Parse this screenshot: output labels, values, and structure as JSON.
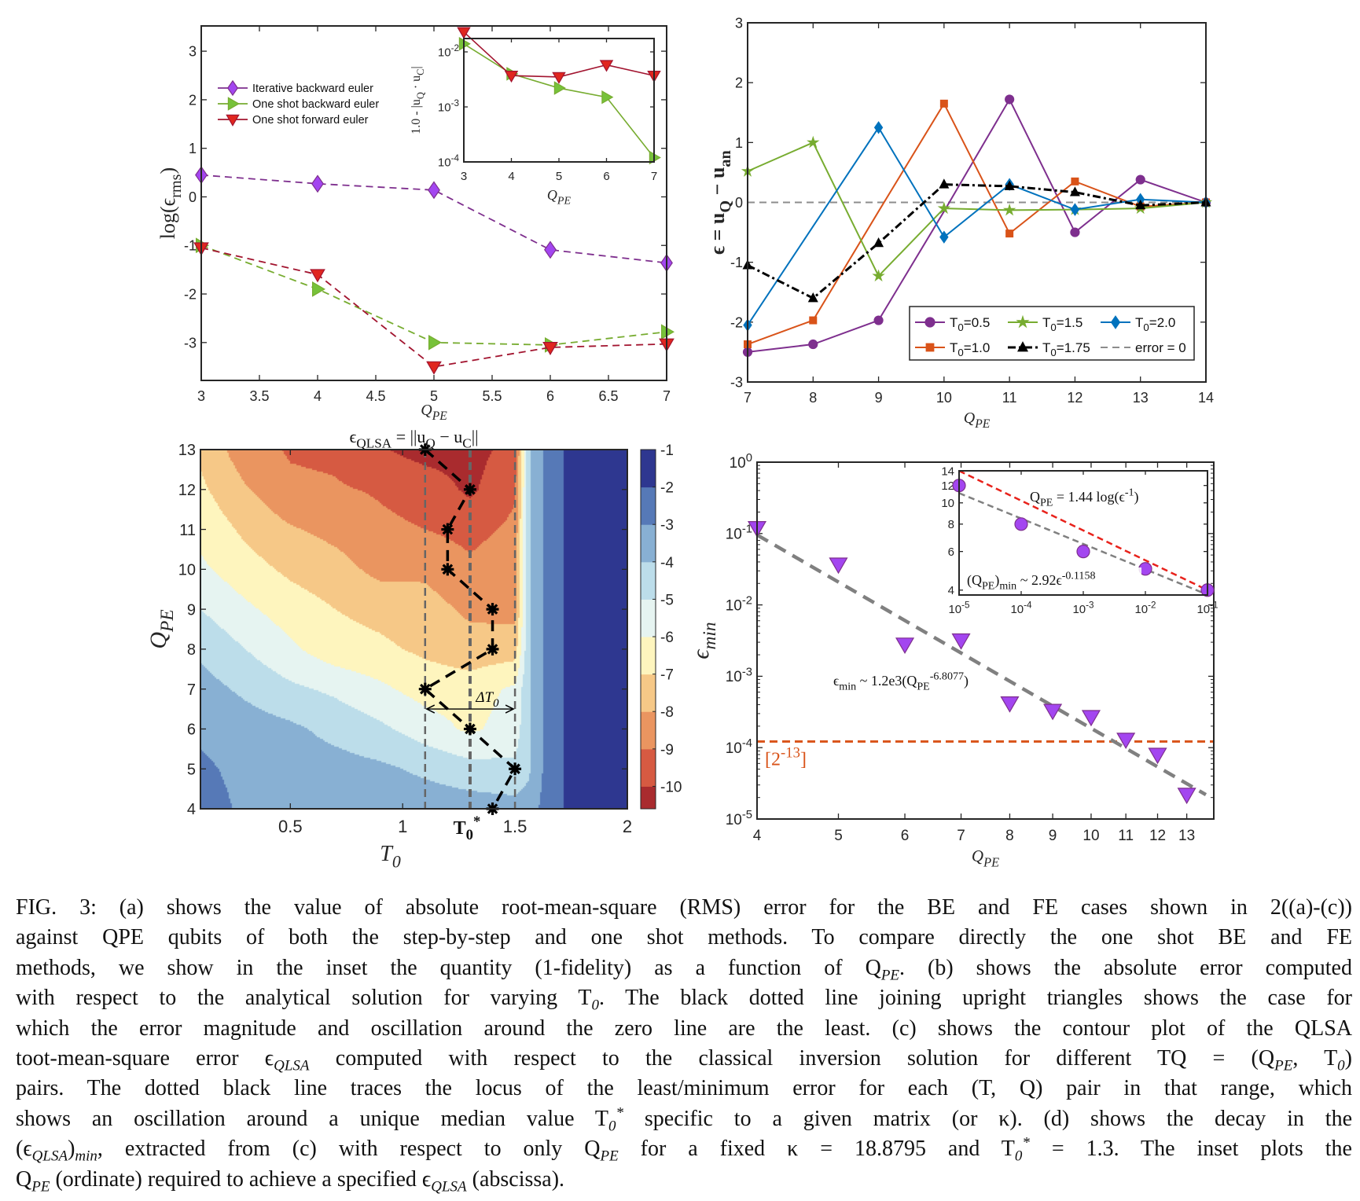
{
  "figure": {
    "caption_lines": [
      "FIG. 3:  (a) shows the value of absolute root-mean-square (RMS) error for the BE and FE cases shown in 2((a)-(c))",
      "against QPE qubits of both the step-by-step and one shot methods. To compare directly the one shot BE and FE",
      "methods, we show in the inset the quantity (1-fidelity) as a function of Q_{PE}. (b) shows the absolute error computed",
      "with respect to the analytical solution for varying T_{0}. The black dotted line joining upright triangles shows the case for",
      "which the error magnitude and oscillation around the zero line are the least. (c) shows the contour plot of the QLSA",
      "toot-mean-square error ϵ_{QLSA} computed with respect to the classical inversion solution for different TQ = (Q_{PE}, T_{0})",
      "pairs. The dotted black line traces the locus of the least/minimum error for each (T, Q) pair in that range, which",
      "shows an oscillation around a unique median value T_{0}^{*} specific to a given matrix (or κ). (d) shows the decay in the",
      "(ϵ_{QLSA})_{min}, extracted from (c) with respect to only Q_{PE} for a fixed κ = 18.8795 and T_{0}^{*} = 1.3. The inset plots the",
      "Q_{PE} (ordinate) required to achieve a specified ϵ_{QLSA} (abscissa)."
    ]
  },
  "chart_data": [
    {
      "id": "a",
      "type": "line",
      "xlabel": "Q_{PE}",
      "ylabel": "log(ϵ_{rms})",
      "xlim": [
        3,
        7
      ],
      "ylim": [
        -3.78,
        3.52
      ],
      "xscale": "linear",
      "yscale": "linear",
      "xticks": [
        3,
        3.5,
        4,
        4.5,
        5,
        5.5,
        6,
        6.5,
        7
      ],
      "xtick_labels": [
        "3",
        "3.5",
        "4",
        "4.5",
        "5",
        "5.5",
        "6",
        "6.5",
        "7"
      ],
      "yticks": [
        -3,
        -2,
        -1,
        0,
        1,
        2,
        3
      ],
      "ytick_labels": [
        "-3",
        "-2",
        "-1",
        "0",
        "1",
        "2",
        "3"
      ],
      "grid": false,
      "legend": "top-left",
      "x": [
        3,
        4,
        5,
        6,
        7
      ],
      "series": [
        {
          "name": "Iterative backward euler",
          "values": [
            0.45,
            0.27,
            0.14,
            -1.09,
            -1.36
          ],
          "color": "#7E2F8E",
          "marker_fill": "#A346F0",
          "marker": "diamond",
          "line": "dashed"
        },
        {
          "name": "One shot backward euler",
          "values": [
            -1.0,
            -1.9,
            -3.0,
            -3.05,
            -2.78
          ],
          "color": "#77AC30",
          "marker_fill": "#77C23A",
          "marker": "triangle-right",
          "line": "dashed"
        },
        {
          "name": "One shot forward euler",
          "values": [
            -1.05,
            -1.6,
            -3.5,
            -3.1,
            -3.03
          ],
          "color": "#A2142F",
          "marker_fill": "#E0261F",
          "marker": "triangle-down",
          "line": "dashed"
        }
      ]
    },
    {
      "id": "a-inset",
      "type": "line",
      "xlabel": "Q_{PE}",
      "ylabel": "1.0 - |u_{Q} · u_{C}|",
      "xlim": [
        3,
        7
      ],
      "ylim": [
        0.0001,
        0.0175
      ],
      "xscale": "linear",
      "yscale": "log",
      "xticks": [
        3,
        4,
        5,
        6,
        7
      ],
      "xtick_labels": [
        "3",
        "4",
        "5",
        "6",
        "7"
      ],
      "yticks": [
        0.0001,
        0.001,
        0.01
      ],
      "ytick_labels": [
        "10^{-4}",
        "10^{-3}",
        "10^{-2}"
      ],
      "x": [
        3,
        4,
        5,
        6,
        7
      ],
      "series": [
        {
          "values": [
            0.014,
            0.004,
            0.0022,
            0.0015,
            0.00012
          ],
          "color": "#77AC30",
          "marker_fill": "#77C23A",
          "marker": "triangle-right",
          "line": "solid"
        },
        {
          "values": [
            0.023,
            0.0037,
            0.0035,
            0.0058,
            0.0037
          ],
          "color": "#A2142F",
          "marker_fill": "#E0261F",
          "marker": "triangle-down",
          "line": "solid"
        }
      ]
    },
    {
      "id": "b",
      "type": "line",
      "xlabel": "Q_{PE}",
      "ylabel": "ϵ = u_{Q} − u_{an}",
      "xlim": [
        7,
        14
      ],
      "ylim": [
        -3,
        3
      ],
      "xscale": "linear",
      "yscale": "linear",
      "xticks": [
        7,
        8,
        9,
        10,
        11,
        12,
        13,
        14
      ],
      "xtick_labels": [
        "7",
        "8",
        "9",
        "10",
        "11",
        "12",
        "13",
        "14"
      ],
      "yticks": [
        -3,
        -2,
        -1,
        0,
        1,
        2,
        3
      ],
      "ytick_labels": [
        "-3",
        "-2",
        "-1",
        "0",
        "1",
        "2",
        "3"
      ],
      "legend": "bottom-right",
      "x": [
        7,
        8,
        9,
        10,
        11,
        12,
        13,
        14
      ],
      "series": [
        {
          "name": "T_{0}=0.5",
          "values": [
            -2.5,
            -2.37,
            -1.97,
            -0.15,
            1.72,
            -0.5,
            0.38,
            0
          ],
          "color": "#7E2F8E",
          "marker": "circle",
          "line": "solid",
          "marker_at": [
            1,
            1,
            1,
            0,
            1,
            1,
            1,
            1
          ]
        },
        {
          "name": "T_{0}=1.5",
          "values": [
            0.52,
            1.0,
            -1.23,
            -0.1,
            -0.13,
            -0.12,
            -0.1,
            0
          ],
          "color": "#77AC30",
          "marker": "star",
          "line": "solid"
        },
        {
          "name": "T_{0}=2.0",
          "values": [
            -2.05,
            -0.4,
            1.25,
            -0.58,
            0.3,
            -0.12,
            0.05,
            0
          ],
          "color": "#0072BD",
          "marker": "diamond",
          "line": "solid",
          "marker_at": [
            1,
            0,
            1,
            1,
            1,
            1,
            1,
            1
          ]
        },
        {
          "name": "T_{0}=1.0",
          "values": [
            -2.37,
            -1.97,
            -0.15,
            1.65,
            -0.52,
            0.35,
            -0.07,
            0
          ],
          "color": "#D95319",
          "marker": "square",
          "line": "solid",
          "marker_at": [
            1,
            1,
            0,
            1,
            1,
            1,
            1,
            1
          ]
        },
        {
          "name": "T_{0}=1.75",
          "values": [
            -1.05,
            -1.6,
            -0.68,
            0.3,
            0.27,
            0.17,
            -0.05,
            0
          ],
          "color": "#000000",
          "marker": "triangle-up",
          "line": "dashdot"
        },
        {
          "name": "error = 0",
          "values": [
            0,
            0,
            0,
            0,
            0,
            0,
            0,
            0
          ],
          "color": "#8C8C8C",
          "marker": "none",
          "line": "dashed"
        }
      ]
    },
    {
      "id": "c",
      "type": "heatmap",
      "title": "ϵ_{QLSA} = ||u_{Q} − u_{C}||",
      "xlabel": "T_{0}",
      "ylabel": "Q_{PE}",
      "xlim": [
        0.1,
        2
      ],
      "ylim": [
        4,
        13
      ],
      "xticks": [
        0.5,
        1,
        1.5,
        2
      ],
      "xtick_labels": [
        "0.5",
        "1",
        "1.5",
        "2"
      ],
      "yticks": [
        4,
        5,
        6,
        7,
        8,
        9,
        10,
        11,
        12,
        13
      ],
      "ytick_labels": [
        "4",
        "5",
        "6",
        "7",
        "8",
        "9",
        "10",
        "11",
        "12",
        "13"
      ],
      "t0_star_label": "T_{0}^{*}",
      "t0_star": 1.3,
      "delta_label": "ΔT_{0}",
      "delta_range": [
        1.1,
        1.5
      ],
      "delta_at_q": 6.5,
      "vertical_lines": [
        1.1,
        1.3,
        1.5
      ],
      "colorbar": {
        "clim": [
          -10.6,
          -1
        ],
        "ticks": [
          -1,
          -2,
          -3,
          -4,
          -5,
          -6,
          -7,
          -8,
          -9,
          -10
        ],
        "tick_labels": [
          "-1",
          "-2",
          "-3",
          "-4",
          "-5",
          "-6",
          "-7",
          "-8",
          "-9",
          "-10"
        ],
        "levels": [
          -10,
          -9,
          -8,
          -7,
          -6,
          -5,
          -4,
          -3,
          -2
        ],
        "colors": [
          "#A92B2E",
          "#D65A42",
          "#EA9560",
          "#F6C887",
          "#FEF5BE",
          "#E6F4F1",
          "#BCDDEA",
          "#88B0D3",
          "#5679B7",
          "#2E3790"
        ]
      },
      "grid_t0": [
        0.1,
        0.3,
        0.5,
        0.7,
        0.9,
        1.1,
        1.3,
        1.5,
        1.56,
        1.65,
        1.78,
        2.0
      ],
      "grid_q": [
        4,
        5,
        6,
        7,
        8,
        9,
        10,
        11,
        12,
        13
      ],
      "z": [
        [
          -2.5,
          -3.2,
          -3.4,
          -3.4,
          -3.4,
          -3.4,
          -3.5,
          -3.6,
          -3.5,
          -2.5,
          -1.5,
          -1.5
        ],
        [
          -2.8,
          -3.3,
          -3.5,
          -3.6,
          -3.8,
          -4.2,
          -4.6,
          -4.8,
          -4.2,
          -2.5,
          -1.5,
          -1.5
        ],
        [
          -3.2,
          -3.5,
          -3.8,
          -4.3,
          -4.8,
          -5.5,
          -6.2,
          -5.5,
          -4.2,
          -2.5,
          -1.5,
          -1.5
        ],
        [
          -3.6,
          -4.2,
          -4.8,
          -5.2,
          -5.8,
          -6.4,
          -6.5,
          -5.8,
          -4.2,
          -2.5,
          -1.5,
          -1.5
        ],
        [
          -4.2,
          -5.0,
          -5.8,
          -6.6,
          -6.8,
          -7.2,
          -7.6,
          -7.5,
          -4.2,
          -2.5,
          -1.5,
          -1.5
        ],
        [
          -5.0,
          -5.8,
          -6.5,
          -7.0,
          -7.3,
          -7.6,
          -8.2,
          -8.3,
          -4.2,
          -2.5,
          -1.5,
          -1.5
        ],
        [
          -5.8,
          -6.6,
          -7.2,
          -7.6,
          -8.3,
          -8.2,
          -8.8,
          -8.4,
          -4.2,
          -2.5,
          -1.5,
          -1.5
        ],
        [
          -6.3,
          -7.2,
          -7.9,
          -8.3,
          -8.8,
          -9.0,
          -9.3,
          -8.8,
          -4.2,
          -2.5,
          -1.5,
          -1.5
        ],
        [
          -6.8,
          -7.9,
          -8.8,
          -8.9,
          -9.1,
          -9.4,
          -10.2,
          -9.1,
          -4.2,
          -2.5,
          -1.5,
          -1.5
        ],
        [
          -7.2,
          -8.6,
          -9.1,
          -9.2,
          -9.9,
          -10.4,
          -10.4,
          -9.6,
          -4.2,
          -2.5,
          -1.5,
          -1.5
        ]
      ],
      "locus": {
        "t0": [
          1.1,
          1.3,
          1.2,
          1.2,
          1.4,
          1.4,
          1.1,
          1.3,
          1.5,
          1.4
        ],
        "q": [
          13,
          12,
          11,
          10,
          9,
          8,
          7,
          6,
          5,
          4
        ],
        "color": "#000000",
        "marker": "asterisk",
        "line": "dashed"
      }
    },
    {
      "id": "d",
      "type": "scatter",
      "xlabel": "Q_{PE}",
      "ylabel": "ϵ_{min}",
      "xlim": [
        4,
        14
      ],
      "ylim": [
        1e-05,
        1
      ],
      "xscale": "log",
      "yscale": "log",
      "xticks": [
        4,
        5,
        6,
        7,
        8,
        9,
        10,
        11,
        12,
        13
      ],
      "xtick_labels": [
        "4",
        "5",
        "6",
        "7",
        "8",
        "9",
        "10",
        "11",
        "12",
        "13"
      ],
      "yticks": [
        1e-05,
        0.0001,
        0.001,
        0.01,
        0.1,
        1
      ],
      "ytick_labels": [
        "10^{-5}",
        "10^{-4}",
        "10^{-3}",
        "10^{-2}",
        "10^{-1}",
        "10^{0}"
      ],
      "x": [
        4,
        5,
        6,
        7,
        8,
        9,
        10,
        11,
        12,
        13
      ],
      "values": [
        0.12,
        0.037,
        0.0028,
        0.0032,
        0.00042,
        0.00033,
        0.00027,
        0.00013,
        8e-05,
        2.2e-05
      ],
      "marker": "triangle-down",
      "marker_fill": "#A346F0",
      "marker_edge": "#7E2F8E",
      "fit": {
        "label": "ϵ_{min} ~ 1.2e3(Q_{PE}^{-6.8077})",
        "a": 1200,
        "b": -6.8077,
        "color": "#808080"
      },
      "threshold": {
        "label": "[2^{-13}]",
        "value": 0.00012207,
        "color": "#D95319"
      }
    },
    {
      "id": "d-inset",
      "type": "scatter",
      "xlim": [
        1e-05,
        0.1
      ],
      "ylim": [
        3.8,
        14
      ],
      "xscale": "log",
      "yscale": "log",
      "xticks": [
        1e-05,
        0.0001,
        0.001,
        0.01,
        0.1
      ],
      "xtick_labels": [
        "10^{-5}",
        "10^{-4}",
        "10^{-3}",
        "10^{-2}",
        "10^{-1}"
      ],
      "yticks": [
        4,
        6,
        8,
        10,
        12,
        14
      ],
      "ytick_labels": [
        "4",
        "6",
        "8",
        "10",
        "12",
        "14"
      ],
      "x": [
        1e-05,
        0.0001,
        0.001,
        0.01,
        0.1
      ],
      "values": [
        12,
        8,
        6,
        5,
        4
      ],
      "marker": "circle",
      "marker_fill": "#A346F0",
      "marker_edge": "#7E2F8E",
      "fit": {
        "label": "(Q_{PE})_{min} ~ 2.92ϵ^{-0.1158}",
        "a": 2.92,
        "b": -0.1158,
        "color": "#808080"
      },
      "bound": {
        "label": "Q_{PE} = 1.44 log(ϵ^{-1})",
        "x": [
          1e-05,
          0.1
        ],
        "y": [
          14,
          4
        ],
        "color": "#E8221B"
      }
    }
  ]
}
